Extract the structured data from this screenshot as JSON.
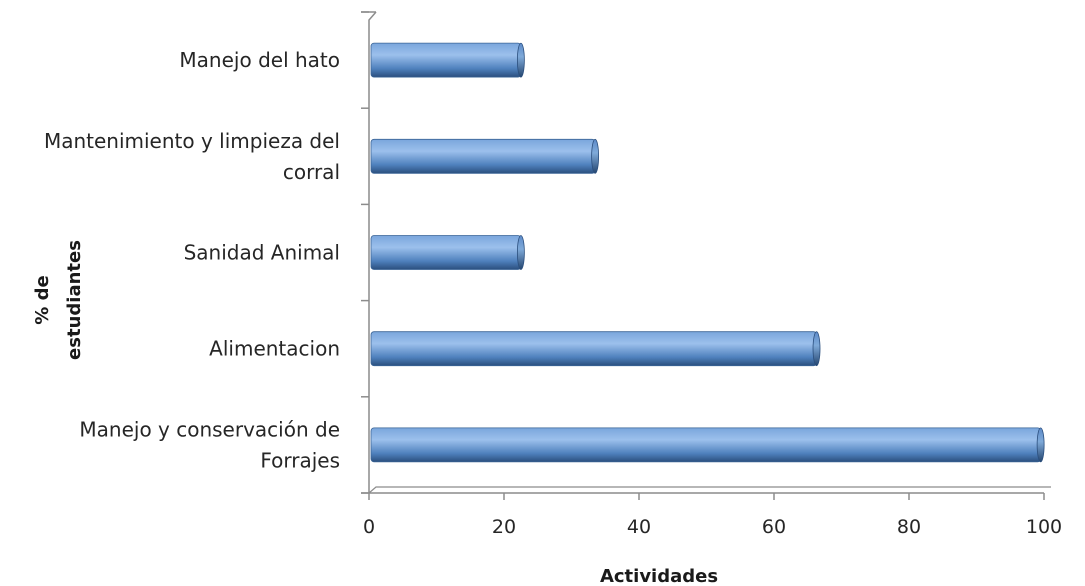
{
  "chart_data": {
    "type": "bar",
    "orientation": "horizontal",
    "categories": [
      "Manejo del hato",
      "Mantenimiento y limpieza del corral",
      "Sanidad Animal",
      "Alimentacion",
      "Manejo y conservación de Forrajes"
    ],
    "category_lines": [
      [
        "Manejo del hato"
      ],
      [
        "Mantenimiento y limpieza del",
        "corral"
      ],
      [
        "Sanidad Animal"
      ],
      [
        "Alimentacion"
      ],
      [
        "Manejo y conservación de",
        "Forrajes"
      ]
    ],
    "values": [
      22.5,
      33.5,
      22.5,
      66.3,
      99.5
    ],
    "xlim": [
      0,
      100
    ],
    "xticks": [
      "0",
      "20",
      "40",
      "60",
      "80",
      "100"
    ],
    "xlabel": "Actividades",
    "ylabel_lines": [
      "% de",
      "estudiantes"
    ],
    "grid": false,
    "bar_color": "#4f81bd",
    "bar_color_light": "#9cc0ec",
    "bar_color_dark": "#2b4f7e",
    "axis_color": "#8c8c8c"
  }
}
